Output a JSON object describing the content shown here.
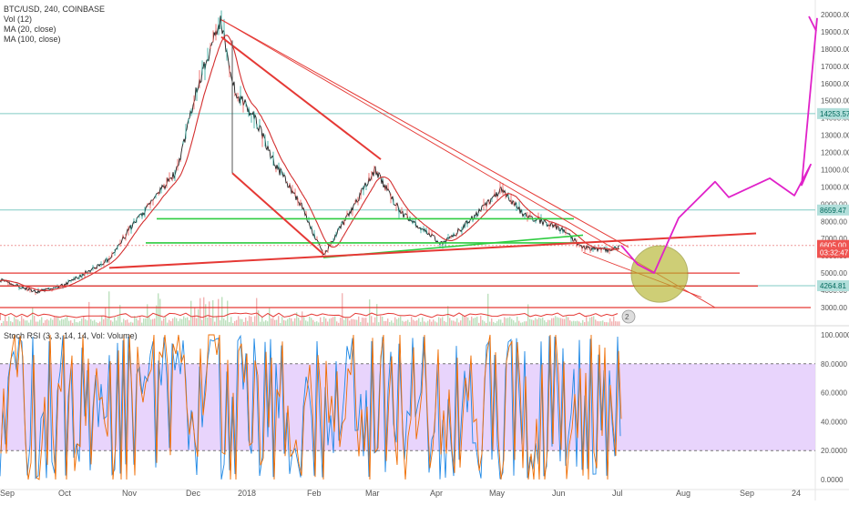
{
  "header": {
    "symbol": "BTC/USD, 240, COINBASE",
    "vol": "Vol (12)",
    "ma20": "MA (20, close)",
    "ma100": "MA (100, close)"
  },
  "rsi_header": "Stoch RSI (3, 3, 14, 14, Vol: Volume)",
  "volume_badge": "2",
  "colors": {
    "price_line": "#1e1e1e",
    "ma": "#d32f2f",
    "trend_red": "#e53935",
    "support_green": "#2ecc40",
    "projection": "#e022c9",
    "circle_fill": "#b5b52e",
    "rsi_band": "#e4ccfb",
    "rsi_k": "#1e88e5",
    "rsi_d": "#ef6c00",
    "horizontal_line": "#80cbc4"
  },
  "chart_data": [
    {
      "type": "line",
      "name": "price",
      "y_ticks": [
        "20000.00",
        "19000.00",
        "18000.00",
        "17000.00",
        "16000.00",
        "15000.00",
        "14000.00",
        "13000.00",
        "12000.00",
        "11000.00",
        "10000.00",
        "9000.00",
        "8000.00",
        "7000.00",
        "6000.00",
        "5000.00",
        "4000.00",
        "3000.00"
      ],
      "x_ticks": [
        "Sep",
        "Oct",
        "Nov",
        "Dec",
        "2018",
        "Feb",
        "Mar",
        "Apr",
        "May",
        "Jun",
        "Jul",
        "Aug",
        "Sep",
        "24"
      ],
      "price_tags": [
        {
          "label": "14253.57",
          "value": 14253.57,
          "style": "teal"
        },
        {
          "label": "8659.47",
          "value": 8659.47,
          "style": "teal"
        },
        {
          "label": "6605.00",
          "value": 6605.0,
          "style": "red"
        },
        {
          "label": "03:32:47",
          "value": 6200.0,
          "style": "red"
        },
        {
          "label": "4264.81",
          "value": 4264.81,
          "style": "teal"
        }
      ],
      "horizontal_levels": [
        14253.57,
        8659.47,
        4264.81
      ],
      "support_levels_red": [
        5000,
        4250,
        3000
      ],
      "support_levels_green": [
        8150,
        6750
      ],
      "series_points": [
        [
          "Sep",
          4600
        ],
        [
          "Oct",
          3900
        ],
        [
          "Oct",
          4300
        ],
        [
          "Nov",
          5800
        ],
        [
          "Nov",
          7400
        ],
        [
          "Dec",
          11000
        ],
        [
          "Dec",
          15500
        ],
        [
          "Dec",
          19700
        ],
        [
          "2018",
          15500
        ],
        [
          "2018",
          14000
        ],
        [
          "2018",
          11500
        ],
        [
          "Feb",
          9000
        ],
        [
          "Feb",
          6000
        ],
        [
          "Mar",
          11000
        ],
        [
          "Mar",
          8500
        ],
        [
          "Apr",
          6700
        ],
        [
          "Apr",
          7500
        ],
        [
          "May",
          9800
        ],
        [
          "May",
          8400
        ],
        [
          "Jun",
          7600
        ],
        [
          "Jun",
          6500
        ],
        [
          "Jul",
          6300
        ],
        [
          "Jul",
          6600
        ]
      ],
      "projection": [
        6600,
        5500,
        5000,
        8200,
        10300,
        9400,
        10500,
        9500,
        11300,
        10100,
        19800
      ]
    },
    {
      "type": "line",
      "name": "Stoch RSI",
      "y_ticks": [
        "100.0000",
        "80.0000",
        "60.0000",
        "40.0000",
        "20.0000",
        "0.0000"
      ],
      "band": [
        20,
        80
      ]
    }
  ]
}
